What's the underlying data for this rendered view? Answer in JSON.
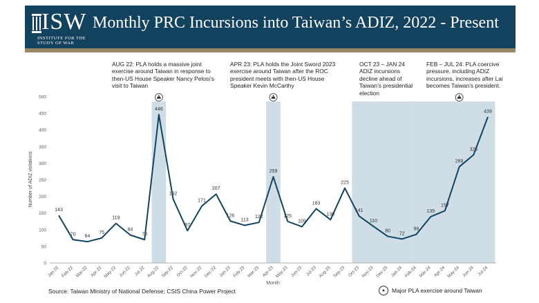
{
  "header": {
    "logo_text": "ISW",
    "logo_subtext_1": "INSTITUTE FOR THE",
    "logo_subtext_2": "STUDY OF WAR",
    "title": "Monthly PRC Incursions into Taiwan’s ADIZ, 2022 - Present",
    "banner_color": "#12425e",
    "stripe_color": "#9b8866"
  },
  "annotations": [
    {
      "id": "aug22",
      "text": "AUG 22: PLA holds a massive joint exercise around Taiwan in response to then-US House Speaker Nancy Pelosi’s visit to Taiwan"
    },
    {
      "id": "apr23",
      "text": "APR 23: PLA holds the Joint Sword 2023 exercise around Taiwan after the ROC president meets with then-US House Speaker Kevin McCarthy"
    },
    {
      "id": "oct23",
      "text": "OCT 23 – JAN 24 ADIZ incursions decline ahead of Taiwan’s presidential election"
    },
    {
      "id": "feb24",
      "text": "FEB – JUL 24: PLA coercive pressure, including ADIZ incursions, increases after Lai becomes Taiwan’s president."
    }
  ],
  "footer": {
    "source": "Source: Taiwan Ministry of National Defense; CSIS China Power Project",
    "legend_label": "Major PLA exercise around Taiwan",
    "legend_icon": "pla-exercise-icon"
  },
  "chart_data": {
    "type": "line",
    "xlabel": "Month",
    "ylabel": "Number of ADIZ violations",
    "ylim": [
      0,
      500
    ],
    "yticks": [
      0,
      50,
      100,
      150,
      200,
      250,
      300,
      350,
      400,
      450,
      500
    ],
    "categories": [
      "Jan-22",
      "Feb-22",
      "Mar-22",
      "Apr-22",
      "May-22",
      "Jun-22",
      "Jul-22",
      "Aug-22",
      "Sep-22",
      "Oct-22",
      "Nov-22",
      "Dec-22",
      "Jan-23",
      "Feb-23",
      "Mar-23",
      "Apr-23",
      "May-23",
      "Jun-23",
      "Jul-23",
      "Aug-23",
      "Sep-23",
      "Oct-23",
      "Nov-23",
      "Dec-23",
      "Jan-24",
      "Feb-24",
      "Mar-24",
      "Apr-24",
      "May-24",
      "Jun-24",
      "Jul-24"
    ],
    "series": [
      {
        "values": [
          143,
          70,
          64,
          75,
          119,
          84,
          70,
          446,
          192,
          97,
          171,
          207,
          126,
          113,
          122,
          259,
          125,
          109,
          163,
          130,
          225,
          141,
          110,
          80,
          72,
          86,
          139,
          157,
          289,
          325,
          439
        ],
        "color": "#12425e"
      }
    ],
    "highlight_color": "#cfdde6",
    "exercise_months": [
      "Aug-22",
      "Apr-23",
      "May-24"
    ],
    "shaded_ranges": [
      [
        "Aug-22",
        "Aug-22"
      ],
      [
        "Apr-23",
        "Apr-23"
      ],
      [
        "Oct-23",
        "Jan-24"
      ],
      [
        "Feb-24",
        "Jul-24"
      ]
    ],
    "grid": false
  }
}
